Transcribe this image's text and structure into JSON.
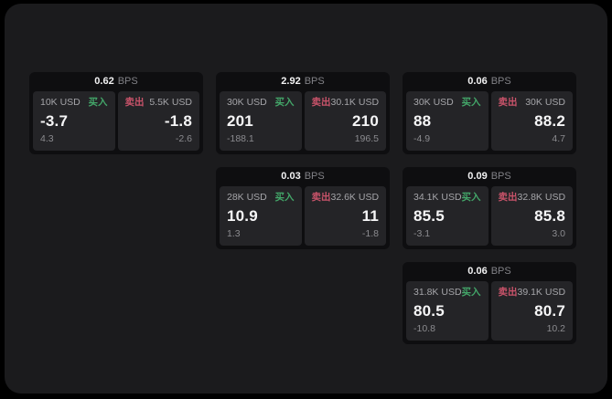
{
  "labels": {
    "bps": "BPS",
    "buy": "买入",
    "sell": "卖出"
  },
  "colors": {
    "page_background": "#000000",
    "container_background": "#1b1b1d",
    "card_background": "#0e0e10",
    "panel_background": "#242427",
    "buy_green": "#43a669",
    "sell_red": "#c9536a"
  },
  "cards": [
    {
      "bps": "0.62",
      "buy": {
        "size": "10K USD",
        "value": "-3.7",
        "sub": "4.3"
      },
      "sell": {
        "size": "5.5K USD",
        "value": "-1.8",
        "sub": "-2.6"
      }
    },
    {
      "bps": "2.92",
      "buy": {
        "size": "30K USD",
        "value": "201",
        "sub": "-188.1"
      },
      "sell": {
        "size": "30.1K USD",
        "value": "210",
        "sub": "196.5"
      }
    },
    {
      "bps": "0.06",
      "buy": {
        "size": "30K USD",
        "value": "88",
        "sub": "-4.9"
      },
      "sell": {
        "size": "30K USD",
        "value": "88.2",
        "sub": "4.7"
      }
    },
    {
      "bps": "0.03",
      "buy": {
        "size": "28K USD",
        "value": "10.9",
        "sub": "1.3"
      },
      "sell": {
        "size": "32.6K USD",
        "value": "11",
        "sub": "-1.8"
      }
    },
    {
      "bps": "0.09",
      "buy": {
        "size": "34.1K USD",
        "value": "85.5",
        "sub": "-3.1"
      },
      "sell": {
        "size": "32.8K USD",
        "value": "85.8",
        "sub": "3.0"
      }
    },
    {
      "bps": "0.06",
      "buy": {
        "size": "31.8K USD",
        "value": "80.5",
        "sub": "-10.8"
      },
      "sell": {
        "size": "39.1K USD",
        "value": "80.7",
        "sub": "10.2"
      }
    }
  ]
}
